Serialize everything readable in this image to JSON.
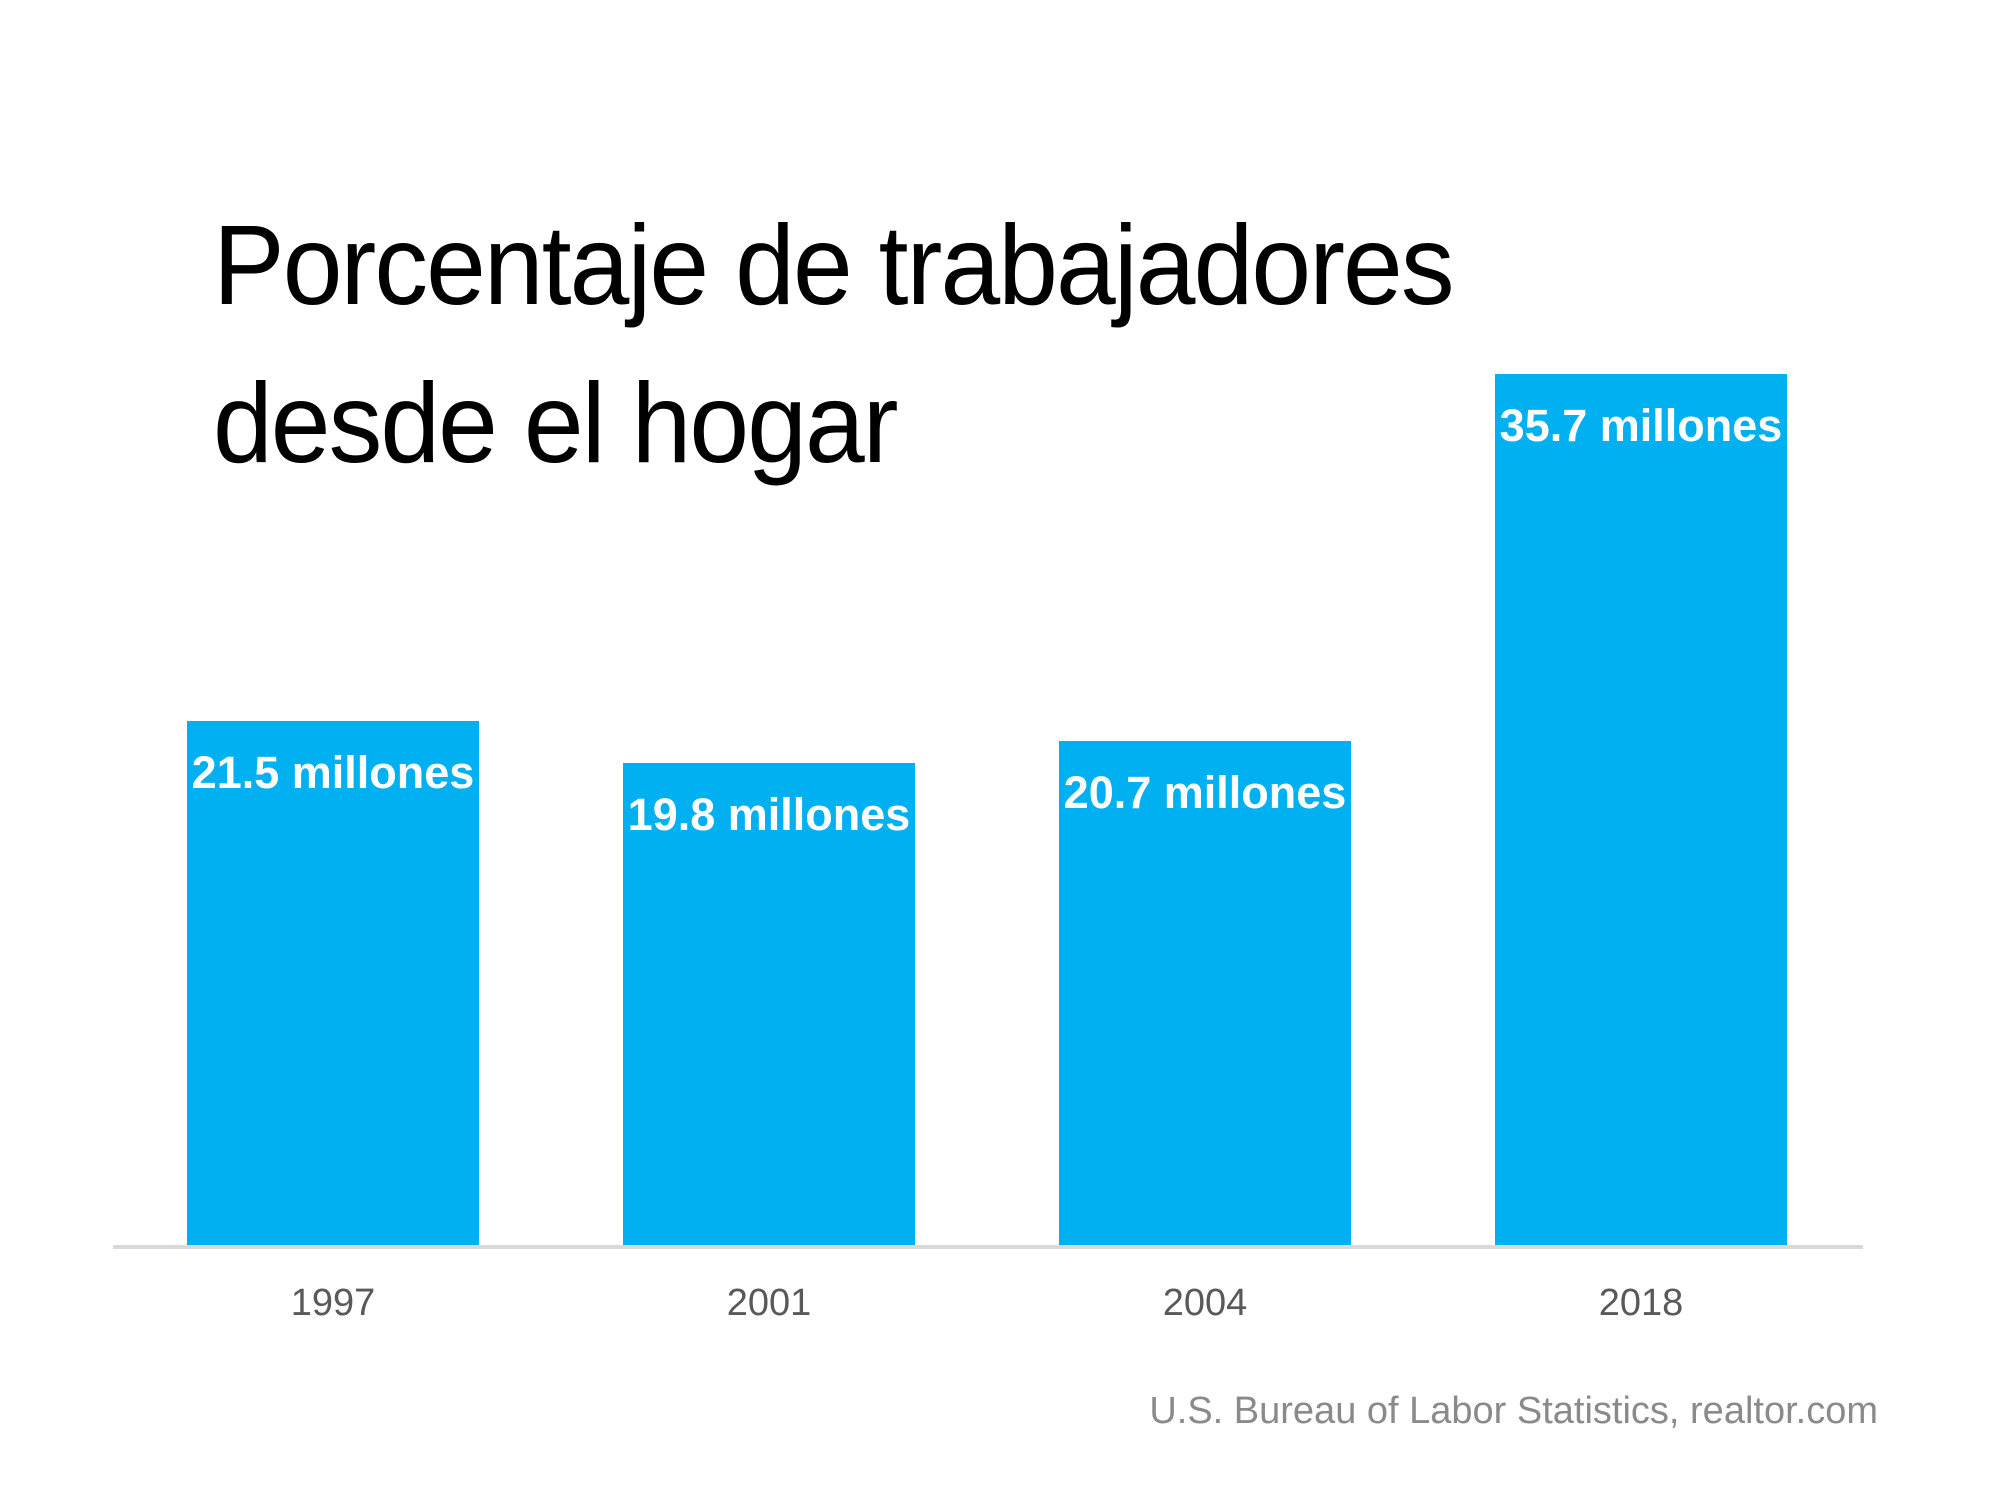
{
  "header": {
    "title_line1": "Porcentaje de trabajadores",
    "title_line2": "desde el hogar"
  },
  "chart_data": {
    "type": "bar",
    "title": "Porcentaje de trabajadores desde el hogar",
    "categories": [
      "1997",
      "2001",
      "2004",
      "2018"
    ],
    "values": [
      21.5,
      19.8,
      20.7,
      35.7
    ],
    "bar_labels": [
      "21.5 millones",
      "19.8 millones",
      "20.7 millones",
      "35.7 millones"
    ],
    "unit": "millones",
    "ylim": [
      0,
      36.5
    ],
    "grid": false,
    "legend": false,
    "source": "U.S. Bureau of Labor Statistics, realtor.com",
    "colors": {
      "bar": "#00B0F0",
      "bar_label": "#FFFFFF",
      "axis_line": "#D9D9D9",
      "tick_label": "#595959",
      "title": "#000000",
      "source": "#8A8A8A"
    }
  }
}
